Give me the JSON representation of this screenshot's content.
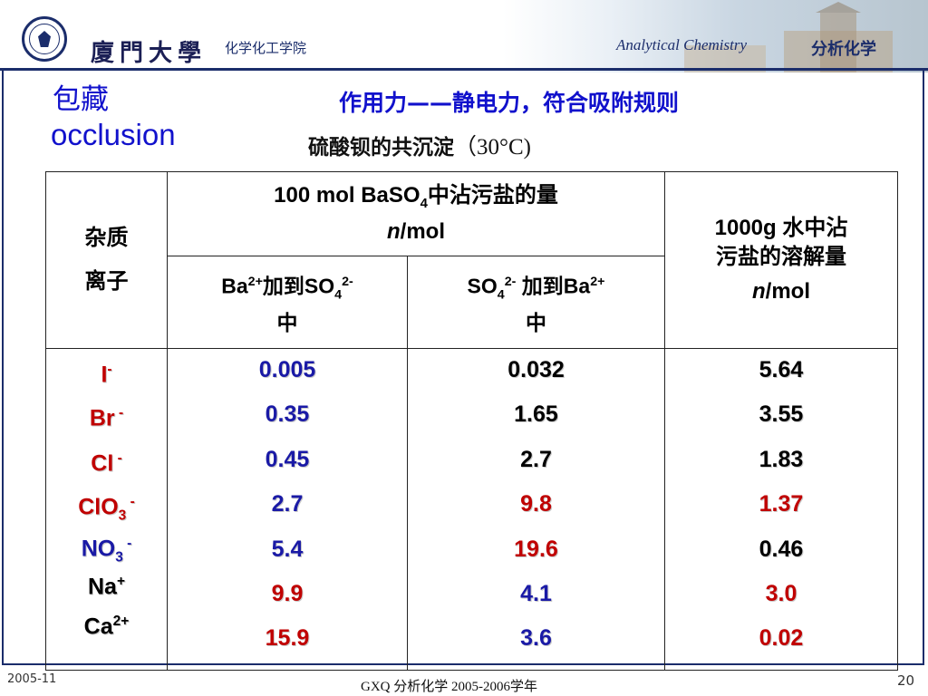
{
  "header": {
    "university_calligraphy": "廈門大學",
    "department": "化学化工学院",
    "course_en": "Analytical Chemistry",
    "course_cn": "分析化学",
    "colors": {
      "navy": "#1b2d6b",
      "title_blue": "#1111cc"
    }
  },
  "slide": {
    "title_cn": "包藏",
    "title_en": "occlusion",
    "subtitle_1": "作用力——静电力，符合吸附规则",
    "subtitle_2_text": "硫酸钡的共沉淀",
    "subtitle_2_temp": "（30°C)"
  },
  "table": {
    "header": {
      "impurity_line1": "杂质",
      "impurity_line2": "离子",
      "group_pre": "100 mol BaSO",
      "group_sub": "4",
      "group_post": "中沾污盐的量",
      "group_unit_italic": "n",
      "group_unit": "/mol",
      "col_a_pre": "Ba",
      "col_a_sup1": "2+",
      "col_a_mid": "加到SO",
      "col_a_sub": "4",
      "col_a_sup2": "2-",
      "col_a_post": "中",
      "col_b_pre": "SO",
      "col_b_sub": "4",
      "col_b_sup1": "2-",
      "col_b_mid": " 加到Ba",
      "col_b_sup2": "2+",
      "col_b_post": "中",
      "solubility_line1": "1000g 水中沾",
      "solubility_line2": "污盐的溶解量",
      "solubility_unit_italic": "n",
      "solubility_unit": "/mol"
    },
    "rows": [
      {
        "ion": "I",
        "ion_sub": "",
        "ion_sup": "-",
        "ion_color": "#c00000",
        "a": "0.005",
        "a_color": "#1a1aa6",
        "b": "0.032",
        "b_color": "#000000",
        "c": "5.64",
        "c_color": "#000000"
      },
      {
        "ion": "Br",
        "ion_sub": "",
        "ion_sup": " -",
        "ion_color": "#c00000",
        "a": "0.35",
        "a_color": "#1a1aa6",
        "b": "1.65",
        "b_color": "#000000",
        "c": "3.55",
        "c_color": "#000000"
      },
      {
        "ion": "Cl",
        "ion_sub": "",
        "ion_sup": " -",
        "ion_color": "#c00000",
        "a": "0.45",
        "a_color": "#1a1aa6",
        "b": "2.7",
        "b_color": "#000000",
        "c": "1.83",
        "c_color": "#000000"
      },
      {
        "ion": "ClO",
        "ion_sub": "3",
        "ion_sup": " -",
        "ion_color": "#c00000",
        "a": "2.7",
        "a_color": "#1a1aa6",
        "b": "9.8",
        "b_color": "#c00000",
        "c": "1.37",
        "c_color": "#c00000"
      },
      {
        "ion": "NO",
        "ion_sub": "3",
        "ion_sup": " -",
        "ion_color": "#1a1aa6",
        "a": "5.4",
        "a_color": "#1a1aa6",
        "b": "19.6",
        "b_color": "#c00000",
        "c": "0.46",
        "c_color": "#000000"
      },
      {
        "ion": "Na",
        "ion_sub": "",
        "ion_sup": "+",
        "ion_color": "#000000",
        "a": "9.9",
        "a_color": "#c00000",
        "b": "4.1",
        "b_color": "#1a1aa6",
        "c": "3.0",
        "c_color": "#c00000"
      },
      {
        "ion": "Ca",
        "ion_sub": "",
        "ion_sup": "2+",
        "ion_color": "#000000",
        "a": "15.9",
        "a_color": "#c00000",
        "b": "3.6",
        "b_color": "#1a1aa6",
        "c": "0.02",
        "c_color": "#c00000"
      }
    ]
  },
  "footer": {
    "date": "2005-11",
    "center": "GXQ   分析化学  2005-2006学年",
    "page_number": "20"
  }
}
